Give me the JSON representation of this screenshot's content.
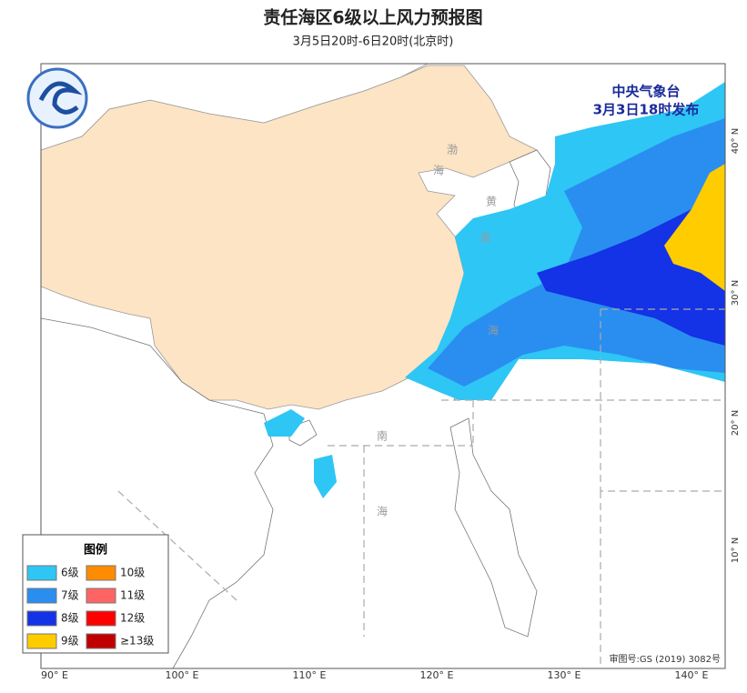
{
  "header": {
    "title": "责任海区6级以上风力预报图",
    "subtitle": "3月5日20时-6日20时(北京时)"
  },
  "issuer": {
    "lines": [
      "中央气象台",
      "3月3日18时发布"
    ]
  },
  "legend": {
    "title": "图例",
    "items": [
      {
        "label": "6级",
        "color": "#2ec6f5"
      },
      {
        "label": "10级",
        "color": "#ff8c00"
      },
      {
        "label": "7级",
        "color": "#2a8ef0"
      },
      {
        "label": "11级",
        "color": "#ff6464"
      },
      {
        "label": "8级",
        "color": "#1432e6"
      },
      {
        "label": "12级",
        "color": "#ff0000"
      },
      {
        "label": "9级",
        "color": "#ffcc00"
      },
      {
        "label": "≥13级",
        "color": "#c00000"
      }
    ]
  },
  "lon_labels": [
    "90° E",
    "100° E",
    "110° E",
    "120° E",
    "130° E",
    "140° E"
  ],
  "lat_labels": [
    "40° N",
    "30° N",
    "20° N",
    "10° N"
  ],
  "sea_labels": [
    "渤",
    "海",
    "黄",
    "海",
    "海",
    "南",
    "海"
  ],
  "review_number": "审图号:GS (2019) 3082号"
}
